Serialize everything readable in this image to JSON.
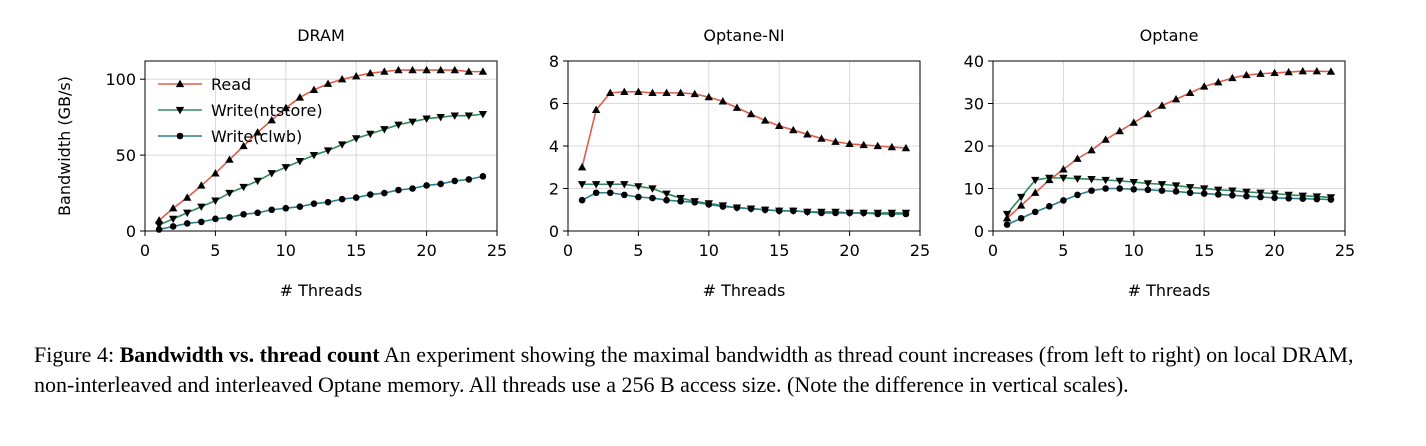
{
  "chart_data": [
    {
      "type": "line",
      "title": "DRAM",
      "xlabel": "# Threads",
      "ylabel": "Bandwidth (GB/s)",
      "xlim": [
        0,
        25
      ],
      "ylim": [
        0,
        112
      ],
      "xticks": [
        0,
        5,
        10,
        15,
        20,
        25
      ],
      "yticks": [
        0,
        50,
        100
      ],
      "grid": true,
      "legend": "top-left",
      "x": [
        1,
        2,
        3,
        4,
        5,
        6,
        7,
        8,
        9,
        10,
        11,
        12,
        13,
        14,
        15,
        16,
        17,
        18,
        19,
        20,
        21,
        22,
        23,
        24
      ],
      "series": [
        {
          "name": "Read",
          "marker": "triangle-up",
          "color": "#e05d4a",
          "values": [
            7,
            15,
            22,
            30,
            38,
            47,
            56,
            65,
            73,
            81,
            88,
            93,
            97,
            100,
            102,
            104,
            105,
            106,
            106,
            106,
            106,
            106,
            105,
            105
          ]
        },
        {
          "name": "Write(ntstore)",
          "marker": "triangle-down",
          "color": "#2e8b57",
          "values": [
            4,
            8,
            12,
            16,
            20,
            25,
            29,
            33,
            38,
            42,
            46,
            50,
            53,
            57,
            61,
            64,
            67,
            70,
            72,
            74,
            75,
            76,
            76,
            77
          ]
        },
        {
          "name": "Write(clwb)",
          "marker": "circle",
          "color": "#2a7f8f",
          "values": [
            1,
            3,
            5,
            6,
            8,
            9,
            11,
            12,
            14,
            15,
            16,
            18,
            19,
            21,
            22,
            24,
            25,
            27,
            28,
            30,
            31,
            33,
            34,
            36
          ]
        }
      ]
    },
    {
      "type": "line",
      "title": "Optane-NI",
      "xlabel": "# Threads",
      "ylabel": "",
      "xlim": [
        0,
        25
      ],
      "ylim": [
        0,
        8
      ],
      "xticks": [
        0,
        5,
        10,
        15,
        20,
        25
      ],
      "yticks": [
        0,
        2,
        4,
        6,
        8
      ],
      "grid": true,
      "x": [
        1,
        2,
        3,
        4,
        5,
        6,
        7,
        8,
        9,
        10,
        11,
        12,
        13,
        14,
        15,
        16,
        17,
        18,
        19,
        20,
        21,
        22,
        23,
        24
      ],
      "series": [
        {
          "marker": "triangle-up",
          "color": "#e05d4a",
          "values": [
            3.0,
            5.7,
            6.5,
            6.55,
            6.55,
            6.5,
            6.5,
            6.5,
            6.45,
            6.3,
            6.1,
            5.8,
            5.5,
            5.2,
            4.95,
            4.75,
            4.55,
            4.35,
            4.2,
            4.1,
            4.05,
            4.0,
            3.95,
            3.9
          ]
        },
        {
          "marker": "triangle-down",
          "color": "#2e8b57",
          "values": [
            2.2,
            2.2,
            2.2,
            2.2,
            2.1,
            2.0,
            1.75,
            1.55,
            1.4,
            1.3,
            1.2,
            1.1,
            1.05,
            1.0,
            0.95,
            0.95,
            0.9,
            0.9,
            0.9,
            0.85,
            0.85,
            0.85,
            0.85,
            0.85
          ]
        },
        {
          "marker": "circle",
          "color": "#2a7f8f",
          "values": [
            1.45,
            1.8,
            1.8,
            1.7,
            1.6,
            1.55,
            1.45,
            1.4,
            1.35,
            1.25,
            1.15,
            1.1,
            1.05,
            1.0,
            0.95,
            0.95,
            0.9,
            0.85,
            0.85,
            0.85,
            0.85,
            0.8,
            0.8,
            0.8
          ]
        }
      ]
    },
    {
      "type": "line",
      "title": "Optane",
      "xlabel": "# Threads",
      "ylabel": "",
      "xlim": [
        0,
        25
      ],
      "ylim": [
        0,
        40
      ],
      "xticks": [
        0,
        5,
        10,
        15,
        20,
        25
      ],
      "yticks": [
        0,
        10,
        20,
        30,
        40
      ],
      "grid": true,
      "x": [
        1,
        2,
        3,
        4,
        5,
        6,
        7,
        8,
        9,
        10,
        11,
        12,
        13,
        14,
        15,
        16,
        17,
        18,
        19,
        20,
        21,
        22,
        23,
        24
      ],
      "series": [
        {
          "marker": "triangle-up",
          "color": "#e05d4a",
          "values": [
            3,
            6,
            9,
            12,
            14.5,
            17,
            19,
            21.5,
            23.5,
            25.5,
            27.5,
            29.5,
            31,
            32.5,
            34,
            35,
            36,
            36.7,
            37,
            37.2,
            37.4,
            37.6,
            37.6,
            37.5
          ]
        },
        {
          "marker": "triangle-down",
          "color": "#2e8b57",
          "values": [
            4,
            8,
            12,
            12.5,
            12.5,
            12.3,
            12.2,
            12,
            11.8,
            11.5,
            11.2,
            11,
            10.7,
            10.3,
            10,
            9.7,
            9.5,
            9.2,
            9,
            8.8,
            8.5,
            8.3,
            8.1,
            7.9
          ]
        },
        {
          "marker": "circle",
          "color": "#2a7f8f",
          "values": [
            1.5,
            3,
            4.5,
            5.8,
            7.2,
            8.5,
            9.5,
            10,
            10,
            9.8,
            9.7,
            9.5,
            9.3,
            9,
            8.8,
            8.6,
            8.4,
            8.2,
            8,
            7.8,
            7.7,
            7.6,
            7.5,
            7.4
          ]
        }
      ]
    }
  ],
  "caption": {
    "prefix": "Figure 4: ",
    "bold": "Bandwidth vs. thread count",
    "text": " An experiment showing the maximal bandwidth as thread count increases (from left to right) on local DRAM, non-interleaved and interleaved Optane memory. All threads use a 256 B access size. (Note the difference in vertical scales)."
  }
}
